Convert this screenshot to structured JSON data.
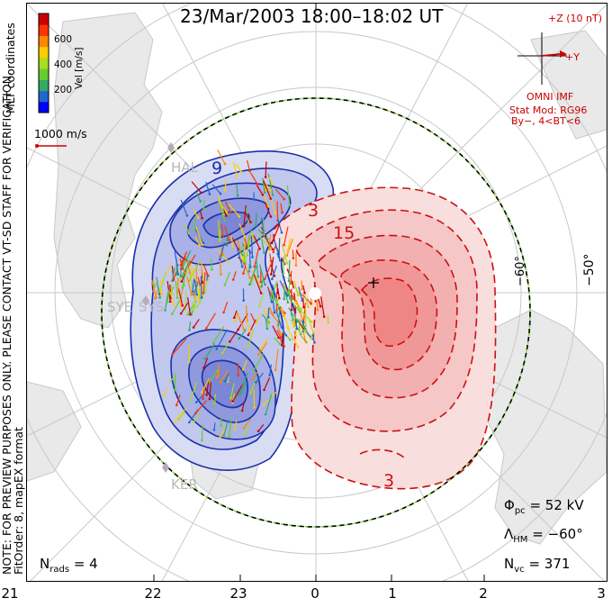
{
  "title": "23/Mar/2003 18:00–18:02 UT",
  "coords_label": "MLT coordinates",
  "note_line1": "NOTE: FOR PREVIEW PURPOSES ONLY. PLEASE CONTACT VT-SD STAFF FOR VERIFICATION.",
  "note_line2": "FitOrder: 8,  mapEX format",
  "colorbar": {
    "title": "Vel [m/s]",
    "ticks": [
      "600",
      "400",
      "200"
    ],
    "colors": [
      "#0000ff",
      "#2266cc",
      "#33aa66",
      "#66cc33",
      "#aadd22",
      "#ffcc00",
      "#ff8800",
      "#ff3300",
      "#cc0000"
    ]
  },
  "vector_scale": "1000 m/s",
  "imf": {
    "z_label": "+Z (10 nT)",
    "y_label": "+Y",
    "source": "OMNI IMF",
    "model_line1": "Stat Mod: RG96",
    "model_line2": "By−, 4<BT<6"
  },
  "stations": [
    "HAL",
    "SYE",
    "SYS",
    "KER"
  ],
  "lat_labels": [
    "−60°",
    "−50°"
  ],
  "contour_labels": [
    "9",
    "3",
    "15",
    "3"
  ],
  "stats": {
    "phi_pc_label": "Φ",
    "phi_pc_sub": "pc",
    "phi_pc_value": "= 52 kV",
    "lambda_label": "Λ",
    "lambda_sub": "HM",
    "lambda_value": "= −60°",
    "nvc_label": "N",
    "nvc_sub": "vc",
    "nvc_value": "= 371",
    "nrads_label": "N",
    "nrads_sub": "rads",
    "nrads_value": "= 4"
  },
  "mlt_axis": [
    "21",
    "22",
    "23",
    "0",
    "1",
    "2",
    "3"
  ],
  "colors": {
    "negative_cell": "#1a2faa",
    "positive_cell": "#cc1111",
    "negative_fill": "#7b86d6",
    "positive_fill": "#f08080",
    "land": "#cfcfcf",
    "grid": "#bfbfbf"
  }
}
